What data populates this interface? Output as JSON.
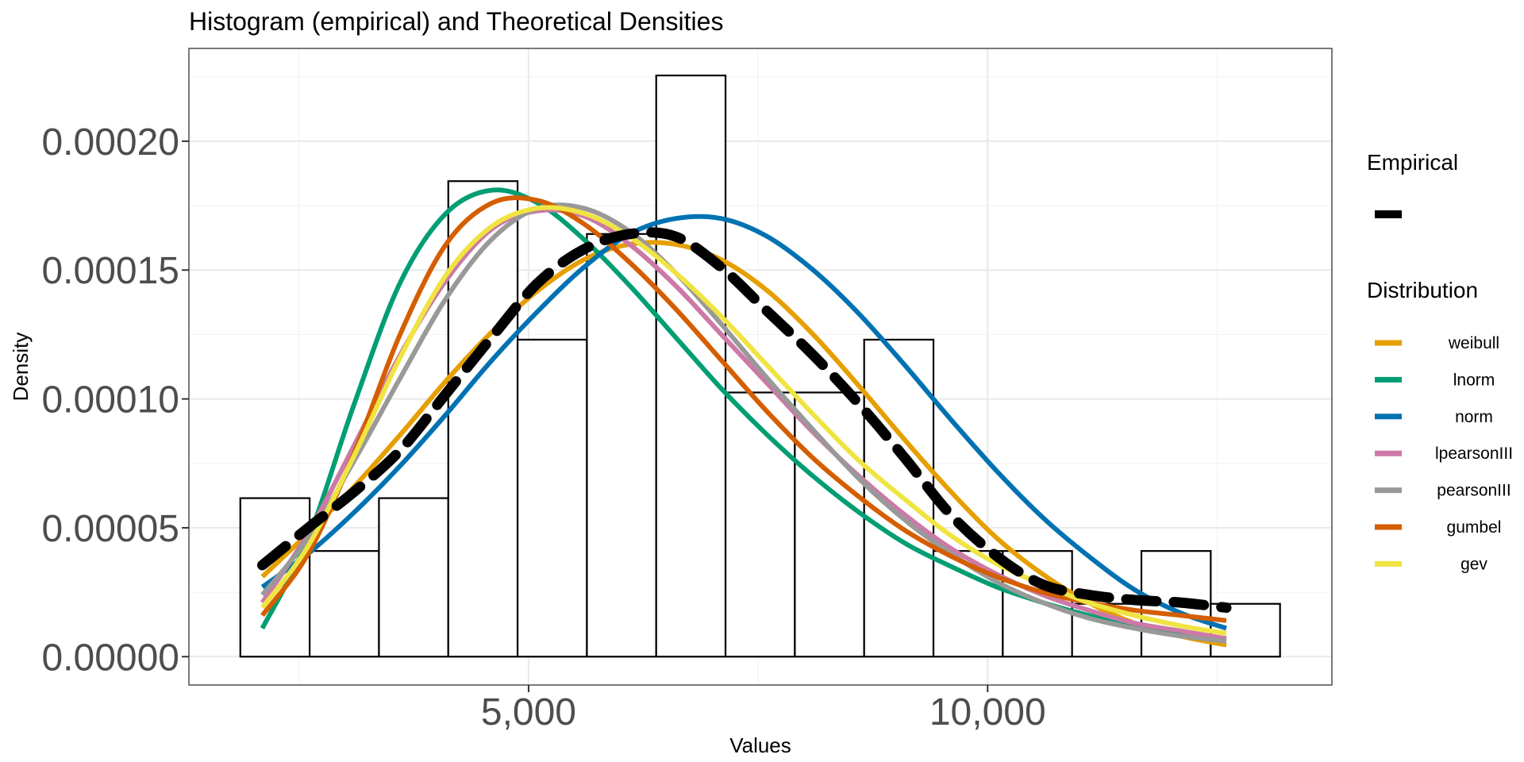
{
  "chart_data": {
    "type": "bar",
    "title": "Histogram (empirical) and Theoretical Densities",
    "xlabel": "Values",
    "ylabel": "Density",
    "xlim": [
      1300,
      13750
    ],
    "ylim": [
      -1.1e-05,
      0.000236
    ],
    "x_ticks": [
      5000,
      10000
    ],
    "x_tick_labels": [
      "5,000",
      "10,000"
    ],
    "y_ticks": [
      0,
      5e-05,
      0.0001,
      0.00015,
      0.0002
    ],
    "y_tick_labels": [
      "0.00000",
      "0.00005",
      "0.00010",
      "0.00015",
      "0.00020"
    ],
    "grid": true,
    "histogram": {
      "bin_edges": [
        1860,
        2615,
        3370,
        4125,
        4880,
        5635,
        6390,
        7145,
        7900,
        8655,
        9410,
        10165,
        10920,
        11675,
        12430,
        13185
      ],
      "values": [
        6.15e-05,
        4.1e-05,
        6.15e-05,
        0.0001845,
        0.000123,
        0.000164,
        0.0002255,
        0.0001025,
        0.0001025,
        0.000123,
        4.1e-05,
        4.1e-05,
        2.05e-05,
        4.1e-05,
        2.05e-05
      ]
    },
    "x": [
      2100,
      2600,
      3100,
      3600,
      4100,
      4600,
      5100,
      5600,
      6100,
      6600,
      7100,
      7600,
      8100,
      8600,
      9100,
      9600,
      10100,
      10600,
      11100,
      11600,
      12100,
      12600
    ],
    "empirical": {
      "name": "Empirical",
      "values": [
        3.55e-05,
        5e-05,
        6.4e-05,
        8e-05,
        0.000102,
        0.000124,
        0.000145,
        0.000158,
        0.000164,
        0.000163,
        0.000151,
        0.000134,
        0.000117,
        9.8e-05,
        7.7e-05,
        5.5e-05,
        3.9e-05,
        2.8e-05,
        2.4e-05,
        2.2e-05,
        2.1e-05,
        1.9e-05
      ]
    },
    "series": [
      {
        "name": "weibull",
        "color": "#E69F00",
        "values": [
          3.1e-05,
          4.8e-05,
          6.6e-05,
          8.6e-05,
          0.000107,
          0.000126,
          0.000142,
          0.000154,
          0.00016,
          0.00016,
          0.000154,
          0.000142,
          0.000125,
          0.000105,
          8.4e-05,
          6.4e-05,
          4.6e-05,
          3.2e-05,
          2.1e-05,
          1.3e-05,
          8e-06,
          4.5e-06
        ]
      },
      {
        "name": "lnorm",
        "color": "#009E73",
        "values": [
          1.1e-05,
          4.6e-05,
          9.8e-05,
          0.000145,
          0.000172,
          0.000181,
          0.000176,
          0.000162,
          0.000144,
          0.000124,
          0.000104,
          8.6e-05,
          7e-05,
          5.6e-05,
          4.4e-05,
          3.5e-05,
          2.7e-05,
          2.1e-05,
          1.6e-05,
          1.2e-05,
          9e-06,
          7e-06
        ]
      },
      {
        "name": "norm",
        "color": "#0072B2",
        "values": [
          2.7e-05,
          4e-05,
          5.6e-05,
          7.4e-05,
          9.4e-05,
          0.000115,
          0.000134,
          0.000151,
          0.000164,
          0.00017,
          0.00017,
          0.000163,
          0.00015,
          0.000133,
          0.000113,
          9.2e-05,
          7.2e-05,
          5.4e-05,
          3.9e-05,
          2.6e-05,
          1.7e-05,
          1.1e-05
        ]
      },
      {
        "name": "lpearsonIII",
        "color": "#CC79A7",
        "values": [
          2.1e-05,
          4.8e-05,
          8.2e-05,
          0.000117,
          0.000146,
          0.000166,
          0.000173,
          0.000171,
          0.00016,
          0.000144,
          0.000125,
          0.000106,
          8.7e-05,
          7e-05,
          5.5e-05,
          4.2e-05,
          3.2e-05,
          2.4e-05,
          1.8e-05,
          1.3e-05,
          1e-05,
          7e-06
        ]
      },
      {
        "name": "pearsonIII",
        "color": "#999999",
        "values": [
          2.4e-05,
          4.6e-05,
          7.6e-05,
          0.000108,
          0.000139,
          0.000162,
          0.000174,
          0.000174,
          0.000165,
          0.000149,
          0.000129,
          0.000108,
          8.8e-05,
          6.9e-05,
          5.3e-05,
          4e-05,
          2.9e-05,
          2.1e-05,
          1.5e-05,
          1.1e-05,
          8e-06,
          6e-06
        ]
      },
      {
        "name": "gumbel",
        "color": "#D55E00",
        "values": [
          1.6e-05,
          4e-05,
          7.9e-05,
          0.000125,
          0.00016,
          0.000176,
          0.000177,
          0.000168,
          0.000153,
          0.000135,
          0.000115,
          9.5e-05,
          7.7e-05,
          6.2e-05,
          4.9e-05,
          3.9e-05,
          3.1e-05,
          2.5e-05,
          2.1e-05,
          1.8e-05,
          1.6e-05,
          1.4e-05
        ]
      },
      {
        "name": "gev",
        "color": "#F0E442",
        "values": [
          1.9e-05,
          4.3e-05,
          7.8e-05,
          0.000116,
          0.000148,
          0.000167,
          0.000174,
          0.000172,
          0.000163,
          0.000149,
          0.000132,
          0.000113,
          9.4e-05,
          7.6e-05,
          6.1e-05,
          4.7e-05,
          3.6e-05,
          2.8e-05,
          2.1e-05,
          1.6e-05,
          1.2e-05,
          9e-06
        ]
      }
    ],
    "legend": {
      "placement": "right",
      "empirical_title": "Empirical",
      "distribution_title": "Distribution",
      "empirical_color": "#000000"
    }
  }
}
